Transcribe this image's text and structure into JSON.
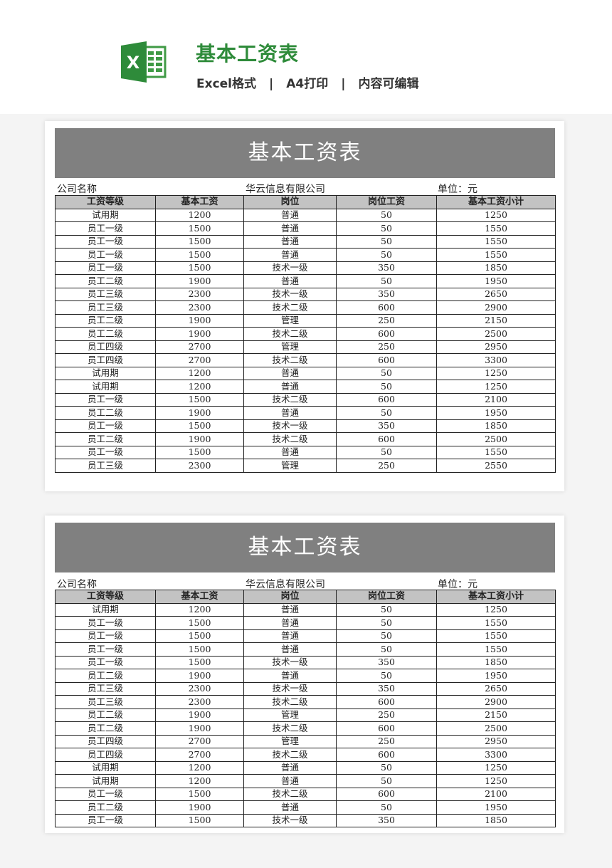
{
  "header": {
    "title": "基本工资表",
    "sub": [
      "Excel格式",
      "A4打印",
      "内容可编辑"
    ],
    "separator": "|",
    "brand_color": "#2e8b3a"
  },
  "sheet": {
    "title": "基本工资表",
    "company_label": "公司名称",
    "company_name": "华云信息有限公司",
    "unit": "单位：元",
    "columns": [
      "工资等级",
      "基本工资",
      "岗位",
      "岗位工资",
      "基本工资小计"
    ]
  },
  "page1_rows": [
    [
      "试用期",
      "1200",
      "普通",
      "50",
      "1250"
    ],
    [
      "员工一级",
      "1500",
      "普通",
      "50",
      "1550"
    ],
    [
      "员工一级",
      "1500",
      "普通",
      "50",
      "1550"
    ],
    [
      "员工一级",
      "1500",
      "普通",
      "50",
      "1550"
    ],
    [
      "员工一级",
      "1500",
      "技术一级",
      "350",
      "1850"
    ],
    [
      "员工二级",
      "1900",
      "普通",
      "50",
      "1950"
    ],
    [
      "员工三级",
      "2300",
      "技术一级",
      "350",
      "2650"
    ],
    [
      "员工三级",
      "2300",
      "技术二级",
      "600",
      "2900"
    ],
    [
      "员工二级",
      "1900",
      "管理",
      "250",
      "2150"
    ],
    [
      "员工二级",
      "1900",
      "技术二级",
      "600",
      "2500"
    ],
    [
      "员工四级",
      "2700",
      "管理",
      "250",
      "2950"
    ],
    [
      "员工四级",
      "2700",
      "技术二级",
      "600",
      "3300"
    ],
    [
      "试用期",
      "1200",
      "普通",
      "50",
      "1250"
    ],
    [
      "试用期",
      "1200",
      "普通",
      "50",
      "1250"
    ],
    [
      "员工一级",
      "1500",
      "技术二级",
      "600",
      "2100"
    ],
    [
      "员工二级",
      "1900",
      "普通",
      "50",
      "1950"
    ],
    [
      "员工一级",
      "1500",
      "技术一级",
      "350",
      "1850"
    ],
    [
      "员工二级",
      "1900",
      "技术二级",
      "600",
      "2500"
    ],
    [
      "员工一级",
      "1500",
      "普通",
      "50",
      "1550"
    ],
    [
      "员工三级",
      "2300",
      "管理",
      "250",
      "2550"
    ]
  ],
  "page2_rows": [
    [
      "试用期",
      "1200",
      "普通",
      "50",
      "1250"
    ],
    [
      "员工一级",
      "1500",
      "普通",
      "50",
      "1550"
    ],
    [
      "员工一级",
      "1500",
      "普通",
      "50",
      "1550"
    ],
    [
      "员工一级",
      "1500",
      "普通",
      "50",
      "1550"
    ],
    [
      "员工一级",
      "1500",
      "技术一级",
      "350",
      "1850"
    ],
    [
      "员工二级",
      "1900",
      "普通",
      "50",
      "1950"
    ],
    [
      "员工三级",
      "2300",
      "技术一级",
      "350",
      "2650"
    ],
    [
      "员工三级",
      "2300",
      "技术二级",
      "600",
      "2900"
    ],
    [
      "员工二级",
      "1900",
      "管理",
      "250",
      "2150"
    ],
    [
      "员工二级",
      "1900",
      "技术二级",
      "600",
      "2500"
    ],
    [
      "员工四级",
      "2700",
      "管理",
      "250",
      "2950"
    ],
    [
      "员工四级",
      "2700",
      "技术二级",
      "600",
      "3300"
    ],
    [
      "试用期",
      "1200",
      "普通",
      "50",
      "1250"
    ],
    [
      "试用期",
      "1200",
      "普通",
      "50",
      "1250"
    ],
    [
      "员工一级",
      "1500",
      "技术二级",
      "600",
      "2100"
    ],
    [
      "员工二级",
      "1900",
      "普通",
      "50",
      "1950"
    ],
    [
      "员工一级",
      "1500",
      "技术一级",
      "350",
      "1850"
    ]
  ]
}
